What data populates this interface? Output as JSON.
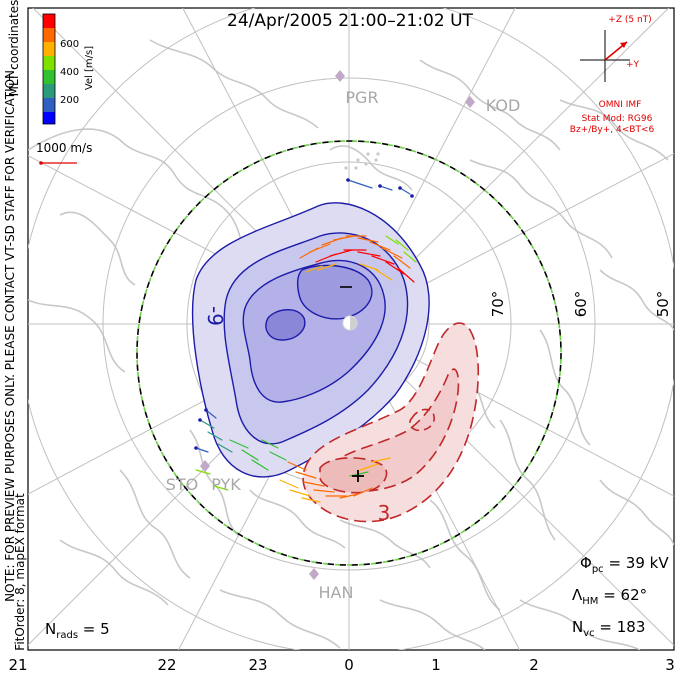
{
  "title": "24/Apr/2005 21:00–21:02 UT",
  "colorbar": {
    "label": "Vel [m/s]",
    "ticks": [
      "600",
      "400",
      "200"
    ],
    "colors": [
      "#ff0000",
      "#ff6a00",
      "#ffb000",
      "#7fe000",
      "#30c030",
      "#2a9a7a",
      "#2f5fc0",
      "#0000ff"
    ]
  },
  "coord_label": "MLT coordinates",
  "scale_arrow_label": "1000 m/s",
  "imf": {
    "top_label": "+Z (5 nT)",
    "side_label": "+Y",
    "source": "OMNI IMF",
    "stat_mod": "Stat Mod: RG96",
    "condition": "Bz+/By+, 4<BT<6"
  },
  "stations": [
    "PGR",
    "KOD",
    "STO",
    "PYK",
    "HAN"
  ],
  "latitude_labels": [
    "70°",
    "60°",
    "50°"
  ],
  "mlt_labels": [
    "21",
    "22",
    "23",
    "0",
    "1",
    "2",
    "3"
  ],
  "contour_labels": [
    "-9",
    "3"
  ],
  "side_note_1": "NOTE: FOR PREVIEW PURPOSES ONLY. PLEASE CONTACT VT-SD STAFF FOR VERIFICATION.",
  "side_note_2": "FitOrder: 8, mapEX format",
  "stats": {
    "phi_sym": "Φ",
    "phi_sub": "pc",
    "phi_val": " = 39 kV",
    "lambda_sym": "Λ",
    "lambda_sub": "HM",
    "lambda_val": " = 62°",
    "nvc_sym": "N",
    "nvc_sub": "vc",
    "nvc_val": " = 183",
    "nrads_sym": "N",
    "nrads_sub": "rads",
    "nrads_val": " = 5"
  },
  "colors": {
    "negative_cell": "#2a2aa8",
    "positive_cell": "#c0282a",
    "coastline": "#c8c8c8",
    "grid": "#c0c0c0",
    "hmb": "#000000",
    "text_red": "#e00000"
  }
}
